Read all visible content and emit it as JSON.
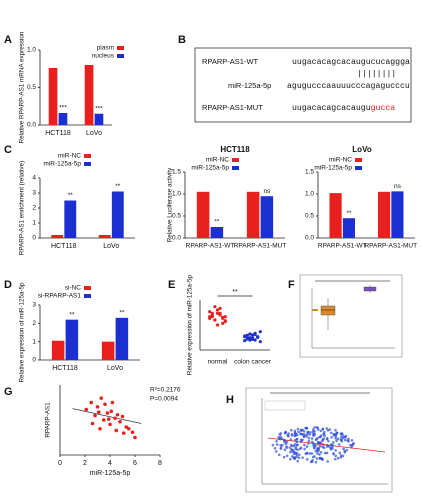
{
  "panel_labels": [
    "A",
    "B",
    "C",
    "D",
    "E",
    "F",
    "G",
    "H"
  ],
  "sequence_panel": {
    "wt_label": "RPARP-AS1-WT",
    "wt_sequence": "uugacacagcacaugucucaggga",
    "mirna_label": "miR-125a-5p",
    "mirna_sequence": "agugucccaauuucccagagucccu",
    "mut_label": "RPARP-AS1-MUT",
    "mut_sequence_unchanged": "uugacacagcacaugu",
    "mut_sequence_mutated": "gucca"
  },
  "chart_data": [
    {
      "type": "bar",
      "y_label": "Relative RPARP-AS1 mRNA expression",
      "categories": [
        "HCT118",
        "LoVo"
      ],
      "series": [
        {
          "name": "plasm",
          "color": "#e8211e",
          "values": [
            0.76,
            0.8
          ]
        },
        {
          "name": "nucleus",
          "color": "#1c2fd0",
          "values": [
            0.16,
            0.15
          ]
        }
      ],
      "annotations": [
        "***",
        "***"
      ],
      "ylim": [
        0,
        1
      ],
      "yticks": [
        {
          "value": 0,
          "label": "0.0"
        },
        {
          "value": 0.5,
          "label": "0.5"
        },
        {
          "value": 1,
          "label": "1.0"
        }
      ]
    },
    {
      "type": "bar",
      "y_label": "RPARP-AS1 enrichment (relative)",
      "categories": [
        "HCT118",
        "LoVo"
      ],
      "series": [
        {
          "name": "miR-NC",
          "color": "#e8211e",
          "values": [
            0.2,
            0.2
          ]
        },
        {
          "name": "miR-125a-5p",
          "color": "#1c2fd0",
          "values": [
            2.5,
            3.1
          ]
        }
      ],
      "annotations": [
        "**",
        "**"
      ],
      "ylim": [
        0,
        4
      ],
      "yticks": [
        0,
        1,
        2,
        3,
        4
      ]
    },
    {
      "type": "bar",
      "title": "HCT118",
      "y_label": "Relative Luciferase activity",
      "categories": [
        "RPARP-AS1-WT",
        "RPARP-AS1-MUT"
      ],
      "series": [
        {
          "name": "miR-NC",
          "color": "#e8211e",
          "values": [
            1.05,
            1.05
          ]
        },
        {
          "name": "miR-125a-5p",
          "color": "#1c2fd0",
          "values": [
            0.25,
            0.95
          ]
        }
      ],
      "annotations": [
        "**",
        "ns"
      ],
      "ylim": [
        0,
        1.5
      ],
      "yticks": [
        {
          "value": 0,
          "label": "0.0"
        },
        {
          "value": 0.5,
          "label": "0.5"
        },
        {
          "value": 1,
          "label": "1.0"
        },
        {
          "value": 1.5,
          "label": "1.5"
        }
      ]
    },
    {
      "type": "bar",
      "title": "LoVo",
      "categories": [
        "RPARP-AS1-WT",
        "RPARP-AS1-MUT"
      ],
      "series": [
        {
          "name": "miR-NC",
          "color": "#e8211e",
          "values": [
            1.02,
            1.05
          ]
        },
        {
          "name": "miR-125a-5p",
          "color": "#1c2fd0",
          "values": [
            0.45,
            1.06
          ]
        }
      ],
      "annotations": [
        "**",
        "ns"
      ],
      "ylim": [
        0,
        1.5
      ],
      "yticks": [
        {
          "value": 0,
          "label": "0.0"
        },
        {
          "value": 0.5,
          "label": "0.5"
        },
        {
          "value": 1,
          "label": "1.0"
        },
        {
          "value": 1.5,
          "label": "1.5"
        }
      ]
    },
    {
      "type": "bar",
      "y_label": "Relative expression of miR-125a-5p",
      "categories": [
        "HCT118",
        "LoVo"
      ],
      "series": [
        {
          "name": "si-NC",
          "color": "#e8211e",
          "values": [
            1.05,
            1.0
          ]
        },
        {
          "name": "si-RPARP-AS1",
          "color": "#1c2fd0",
          "values": [
            2.2,
            2.3
          ]
        }
      ],
      "annotations": [
        "**",
        "**"
      ],
      "ylim": [
        0,
        3
      ],
      "yticks": [
        0,
        1,
        2,
        3
      ]
    },
    {
      "type": "strip",
      "y_label": "Relative expression of miR-125a-5p",
      "categories": [
        "normal",
        "colon cancer"
      ],
      "series": [
        {
          "color": "#e8211e",
          "values": [
            1.0,
            1.1,
            0.9,
            1.2,
            1.05,
            0.95,
            0.85,
            1.15,
            1.0,
            0.9,
            1.1,
            1.25,
            0.8,
            1.0,
            0.95,
            1.05,
            1.3,
            0.75,
            1.1,
            0.98,
            0.88
          ]
        },
        {
          "color": "#1c2fd0",
          "values": [
            0.4,
            0.35,
            0.3,
            0.45,
            0.5,
            0.38,
            0.25,
            0.42,
            0.33,
            0.48,
            0.36,
            0.3,
            0.4,
            0.55,
            0.28,
            0.44,
            0.37,
            0.32,
            0.46,
            0.39
          ]
        }
      ],
      "annotation": "**",
      "ylim": [
        0,
        1.5
      ]
    },
    {
      "type": "scatter",
      "x_label": "miR-125a-5p",
      "y_label": "RPARP-AS1",
      "color": "#e8211e",
      "x": [
        2.1,
        2.5,
        2.8,
        3.0,
        3.2,
        3.3,
        3.5,
        3.6,
        3.8,
        4.0,
        4.1,
        4.2,
        4.4,
        4.5,
        4.6,
        4.8,
        5.0,
        5.1,
        5.3,
        5.5,
        5.8,
        6.0,
        3.1,
        3.9,
        2.6
      ],
      "y": [
        5.2,
        6.0,
        4.5,
        5.5,
        3.0,
        6.5,
        4.0,
        5.8,
        4.8,
        3.5,
        5.0,
        6.0,
        4.2,
        2.8,
        4.6,
        3.8,
        4.4,
        2.5,
        3.2,
        3.0,
        2.6,
        2.0,
        4.9,
        4.1,
        3.6
      ],
      "trendline": {
        "x": [
          1,
          6.5
        ],
        "y": [
          5.3,
          3.6
        ]
      },
      "annotations": [
        "R²=0.2176",
        "P=0.0094"
      ],
      "xlim": [
        0,
        8
      ],
      "xticks": [
        0,
        2,
        4,
        6,
        8
      ],
      "ylim": [
        0,
        8
      ]
    }
  ]
}
